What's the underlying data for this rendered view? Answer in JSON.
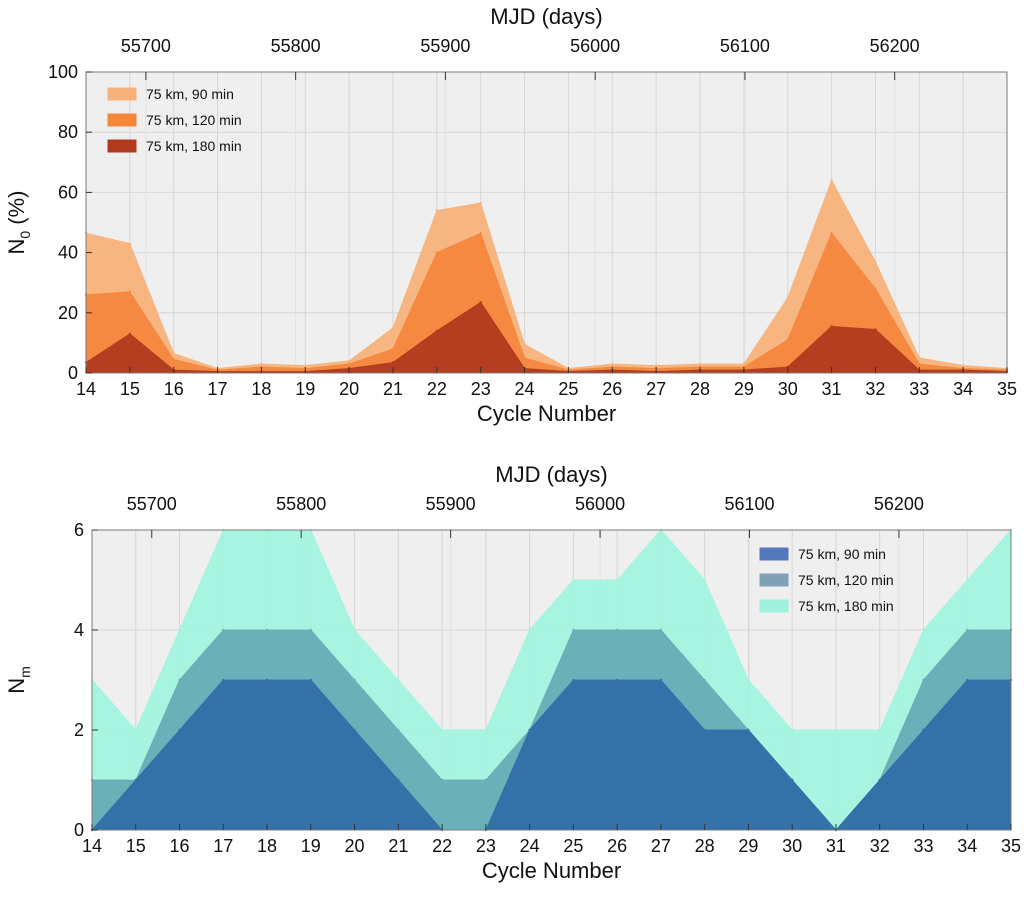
{
  "chart_data": [
    {
      "type": "area",
      "id": "n0",
      "title": "",
      "xlabel": "Cycle Number",
      "ylabel_main": "N",
      "ylabel_sub": "0",
      "ylabel_suffix": " (%)",
      "top_xlabel": "MJD (days)",
      "xlim": [
        14,
        35
      ],
      "ylim": [
        0,
        100
      ],
      "x": [
        14,
        15,
        16,
        17,
        18,
        19,
        20,
        21,
        22,
        23,
        24,
        25,
        26,
        27,
        28,
        29,
        30,
        31,
        32,
        33,
        34,
        35
      ],
      "x_ticks": [
        "14",
        "15",
        "16",
        "17",
        "18",
        "19",
        "20",
        "21",
        "22",
        "23",
        "24",
        "25",
        "26",
        "27",
        "28",
        "29",
        "30",
        "31",
        "32",
        "33",
        "34",
        "35"
      ],
      "y_ticks": [
        "0",
        "20",
        "40",
        "60",
        "80",
        "100"
      ],
      "y_tick_values": [
        0,
        20,
        40,
        60,
        80,
        100
      ],
      "mjd_ticks": [
        "55700",
        "55800",
        "55900",
        "56000",
        "56100",
        "56200"
      ],
      "mjd_tick_values": [
        55700,
        55800,
        55900,
        56000,
        56100,
        56200
      ],
      "mjd_range": [
        55660,
        56275
      ],
      "grid": true,
      "legend_position": "top-left",
      "series": [
        {
          "name": "75 km, 90 min",
          "color": "#f7b27a",
          "values": [
            46.5,
            43,
            6.5,
            1.5,
            3,
            2.5,
            4,
            15,
            54,
            56.5,
            9.5,
            1.5,
            3,
            2.5,
            3,
            3,
            25,
            64,
            37,
            5,
            2.5,
            1.5
          ]
        },
        {
          "name": "75 km, 120 min",
          "color": "#f5873d",
          "values": [
            26,
            27,
            4.5,
            1,
            2,
            1.5,
            3,
            8,
            40,
            46.5,
            5,
            1,
            2,
            1.5,
            2,
            2,
            11,
            46.5,
            28,
            3,
            1.5,
            1
          ]
        },
        {
          "name": "75 km, 180 min",
          "color": "#b03a1e",
          "values": [
            3.5,
            13,
            1,
            0.5,
            0.5,
            0.5,
            1.5,
            3.5,
            14,
            23.5,
            1.5,
            0.5,
            1,
            0.5,
            1,
            1,
            2,
            15.5,
            14.5,
            1,
            1,
            0.5
          ]
        }
      ]
    },
    {
      "type": "area",
      "id": "nm",
      "title": "",
      "xlabel": "Cycle Number",
      "ylabel_main": "N",
      "ylabel_sub": "m",
      "ylabel_suffix": "",
      "top_xlabel": "MJD (days)",
      "xlim": [
        14,
        35
      ],
      "ylim": [
        0,
        6
      ],
      "x": [
        14,
        15,
        16,
        17,
        18,
        19,
        20,
        21,
        22,
        23,
        24,
        25,
        26,
        27,
        28,
        29,
        30,
        31,
        32,
        33,
        34,
        35
      ],
      "x_ticks": [
        "14",
        "15",
        "16",
        "17",
        "18",
        "19",
        "20",
        "21",
        "22",
        "23",
        "24",
        "25",
        "26",
        "27",
        "28",
        "29",
        "30",
        "31",
        "32",
        "33",
        "34",
        "35"
      ],
      "y_ticks": [
        "0",
        "2",
        "4",
        "6"
      ],
      "y_tick_values": [
        0,
        2,
        4,
        6
      ],
      "mjd_ticks": [
        "55700",
        "55800",
        "55900",
        "56000",
        "56100",
        "56200"
      ],
      "mjd_tick_values": [
        55700,
        55800,
        55900,
        56000,
        56100,
        56200
      ],
      "mjd_range": [
        55660,
        56275
      ],
      "grid": true,
      "legend_position": "top-right",
      "series": [
        {
          "name": "75 km, 180 min",
          "color": "#a2f3de",
          "values": [
            3,
            2,
            4,
            6,
            6,
            6,
            4,
            3,
            2,
            2,
            4,
            5,
            5,
            6,
            5,
            3,
            2,
            2,
            2,
            4,
            5,
            6
          ]
        },
        {
          "name": "75 km, 120 min",
          "color": "#66acb6",
          "values": [
            1,
            1,
            3,
            4,
            4,
            4,
            3,
            2,
            1,
            1,
            2,
            4,
            4,
            4,
            3,
            2,
            1,
            0,
            1,
            3,
            4,
            4
          ]
        },
        {
          "name": "75 km, 90 min",
          "color": "#336ea8",
          "values": [
            0,
            1,
            2,
            3,
            3,
            3,
            2,
            1,
            0,
            0,
            2,
            3,
            3,
            3,
            2,
            2,
            1,
            0,
            1,
            2,
            3,
            3
          ]
        }
      ],
      "legend_order": [
        "75 km, 90 min",
        "75 km, 120 min",
        "75 km, 180 min"
      ],
      "legend_colors": [
        "#5577bb",
        "#7fa0b5",
        "#9ff3de"
      ]
    }
  ]
}
